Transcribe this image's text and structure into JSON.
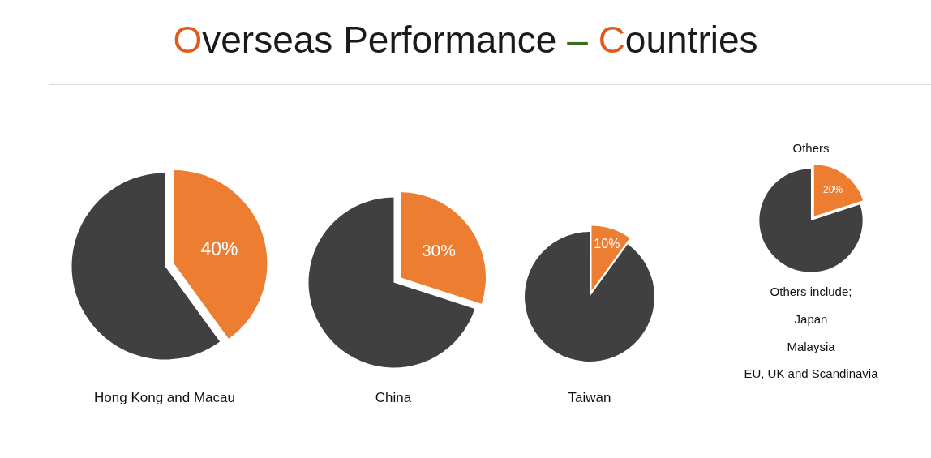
{
  "chart_data": [
    {
      "type": "pie",
      "title": "Overseas Performance – Countries",
      "xlabel": "Hong Kong and Macau",
      "categories": [
        null,
        null
      ],
      "values": [
        40,
        60
      ],
      "colors": [
        "#ed7d31",
        "#404040"
      ],
      "value_labels": [
        "40%",
        null
      ]
    },
    {
      "type": "pie",
      "xlabel": "China",
      "categories": [
        null,
        null
      ],
      "values": [
        30,
        70
      ],
      "colors": [
        "#ed7d31",
        "#404040"
      ],
      "value_labels": [
        "30%",
        null
      ]
    },
    {
      "type": "pie",
      "xlabel": "Taiwan",
      "categories": [
        null,
        null
      ],
      "values": [
        10,
        90
      ],
      "colors": [
        "#ed7d31",
        "#404040"
      ],
      "value_labels": [
        "10%",
        null
      ]
    },
    {
      "type": "pie",
      "title": "Others",
      "categories": [
        null,
        null
      ],
      "values": [
        20,
        80
      ],
      "colors": [
        "#ed7d31",
        "#404040"
      ],
      "value_labels": [
        "20%",
        null
      ],
      "annotations": [
        "Others include;",
        "Japan",
        "Malaysia",
        "EU, UK and Scandinavia"
      ]
    }
  ]
}
